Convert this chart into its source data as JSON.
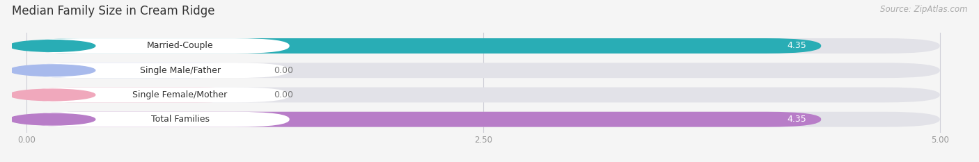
{
  "title": "Median Family Size in Cream Ridge",
  "source": "Source: ZipAtlas.com",
  "categories": [
    "Married-Couple",
    "Single Male/Father",
    "Single Female/Mother",
    "Total Families"
  ],
  "values": [
    4.35,
    0.0,
    0.0,
    4.35
  ],
  "bar_colors": [
    "#29adb5",
    "#a8baec",
    "#f0a8bc",
    "#b87dc8"
  ],
  "value_colors": [
    "#ffffff",
    "#888888",
    "#888888",
    "#ffffff"
  ],
  "xlim_data": [
    0.0,
    5.0
  ],
  "xticks": [
    0.0,
    2.5,
    5.0
  ],
  "xtick_labels": [
    "0.00",
    "2.50",
    "5.00"
  ],
  "title_fontsize": 12,
  "source_fontsize": 8.5,
  "bar_label_fontsize": 9,
  "value_fontsize": 9,
  "background_color": "#f5f5f5",
  "bar_bg_color": "#e2e2e8",
  "label_box_color": "#ffffff",
  "grid_color": "#d0d0d8"
}
